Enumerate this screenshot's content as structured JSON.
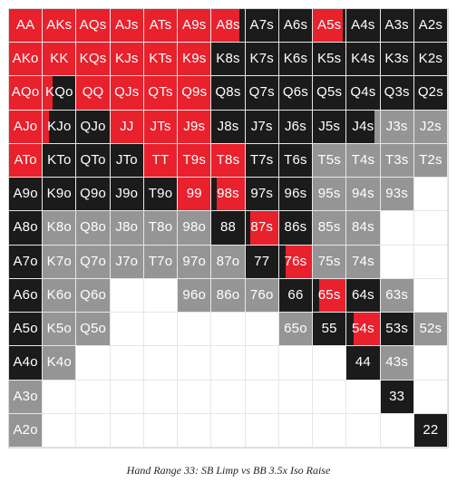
{
  "caption": "Hand Range 33: SB Limp vs BB 3.5x Iso Raise",
  "colors": {
    "raise": "#e8212d",
    "limp": "#1b1b1b",
    "call": "#959595",
    "fold": "#ffffff"
  },
  "grid": [
    [
      {
        "label": "AA",
        "color": "r"
      },
      {
        "label": "AKs",
        "color": "r"
      },
      {
        "label": "AQs",
        "color": "r"
      },
      {
        "label": "AJs",
        "color": "r"
      },
      {
        "label": "ATs",
        "color": "r"
      },
      {
        "label": "A9s",
        "color": "r"
      },
      {
        "label": "A8s",
        "color": "r",
        "mix": "k",
        "frac": 0.85
      },
      {
        "label": "A7s",
        "color": "k"
      },
      {
        "label": "A6s",
        "color": "k"
      },
      {
        "label": "A5s",
        "color": "r",
        "mix": "k",
        "frac": 0.9
      },
      {
        "label": "A4s",
        "color": "k"
      },
      {
        "label": "A3s",
        "color": "k"
      },
      {
        "label": "A2s",
        "color": "k"
      }
    ],
    [
      {
        "label": "AKo",
        "color": "r"
      },
      {
        "label": "KK",
        "color": "r"
      },
      {
        "label": "KQs",
        "color": "r"
      },
      {
        "label": "KJs",
        "color": "r"
      },
      {
        "label": "KTs",
        "color": "r"
      },
      {
        "label": "K9s",
        "color": "r"
      },
      {
        "label": "K8s",
        "color": "k"
      },
      {
        "label": "K7s",
        "color": "k"
      },
      {
        "label": "K6s",
        "color": "k"
      },
      {
        "label": "K5s",
        "color": "k"
      },
      {
        "label": "K4s",
        "color": "k"
      },
      {
        "label": "K3s",
        "color": "k"
      },
      {
        "label": "K2s",
        "color": "k"
      }
    ],
    [
      {
        "label": "AQo",
        "color": "r"
      },
      {
        "label": "KQo",
        "color": "r",
        "mix": "k",
        "frac": 0.3
      },
      {
        "label": "QQ",
        "color": "r"
      },
      {
        "label": "QJs",
        "color": "r"
      },
      {
        "label": "QTs",
        "color": "r"
      },
      {
        "label": "Q9s",
        "color": "r"
      },
      {
        "label": "Q8s",
        "color": "k"
      },
      {
        "label": "Q7s",
        "color": "k"
      },
      {
        "label": "Q6s",
        "color": "k"
      },
      {
        "label": "Q5s",
        "color": "k"
      },
      {
        "label": "Q4s",
        "color": "k"
      },
      {
        "label": "Q3s",
        "color": "k"
      },
      {
        "label": "Q2s",
        "color": "k"
      }
    ],
    [
      {
        "label": "AJo",
        "color": "r"
      },
      {
        "label": "KJo",
        "color": "r",
        "mix": "k",
        "frac": 0.2
      },
      {
        "label": "QJo",
        "color": "k"
      },
      {
        "label": "JJ",
        "color": "r"
      },
      {
        "label": "JTs",
        "color": "r"
      },
      {
        "label": "J9s",
        "color": "r"
      },
      {
        "label": "J8s",
        "color": "k"
      },
      {
        "label": "J7s",
        "color": "k"
      },
      {
        "label": "J6s",
        "color": "k"
      },
      {
        "label": "J5s",
        "color": "k"
      },
      {
        "label": "J4s",
        "color": "k",
        "mix": "g",
        "frac": 0.85
      },
      {
        "label": "J3s",
        "color": "g"
      },
      {
        "label": "J2s",
        "color": "g"
      }
    ],
    [
      {
        "label": "ATo",
        "color": "r"
      },
      {
        "label": "KTo",
        "color": "k"
      },
      {
        "label": "QTo",
        "color": "k"
      },
      {
        "label": "JTo",
        "color": "k"
      },
      {
        "label": "TT",
        "color": "r"
      },
      {
        "label": "T9s",
        "color": "r"
      },
      {
        "label": "T8s",
        "color": "r"
      },
      {
        "label": "T7s",
        "color": "k"
      },
      {
        "label": "T6s",
        "color": "k"
      },
      {
        "label": "T5s",
        "color": "g"
      },
      {
        "label": "T4s",
        "color": "g"
      },
      {
        "label": "T3s",
        "color": "g"
      },
      {
        "label": "T2s",
        "color": "g"
      }
    ],
    [
      {
        "label": "A9o",
        "color": "k"
      },
      {
        "label": "K9o",
        "color": "k"
      },
      {
        "label": "Q9o",
        "color": "k"
      },
      {
        "label": "J9o",
        "color": "k"
      },
      {
        "label": "T9o",
        "color": "k"
      },
      {
        "label": "99",
        "color": "r"
      },
      {
        "label": "98s",
        "color": "k",
        "mix": "r",
        "frac": 0.15
      },
      {
        "label": "97s",
        "color": "k"
      },
      {
        "label": "96s",
        "color": "k"
      },
      {
        "label": "95s",
        "color": "g"
      },
      {
        "label": "94s",
        "color": "g"
      },
      {
        "label": "93s",
        "color": "g"
      },
      {
        "label": "",
        "color": "w"
      }
    ],
    [
      {
        "label": "A8o",
        "color": "k"
      },
      {
        "label": "K8o",
        "color": "g"
      },
      {
        "label": "Q8o",
        "color": "g"
      },
      {
        "label": "J8o",
        "color": "g"
      },
      {
        "label": "T8o",
        "color": "g"
      },
      {
        "label": "98o",
        "color": "g"
      },
      {
        "label": "88",
        "color": "k"
      },
      {
        "label": "87s",
        "color": "k",
        "mix": "r",
        "frac": 0.15
      },
      {
        "label": "86s",
        "color": "k"
      },
      {
        "label": "85s",
        "color": "g"
      },
      {
        "label": "84s",
        "color": "g"
      },
      {
        "label": "",
        "color": "w"
      },
      {
        "label": "",
        "color": "w"
      }
    ],
    [
      {
        "label": "A7o",
        "color": "k"
      },
      {
        "label": "K7o",
        "color": "g"
      },
      {
        "label": "Q7o",
        "color": "g"
      },
      {
        "label": "J7o",
        "color": "g"
      },
      {
        "label": "T7o",
        "color": "g"
      },
      {
        "label": "97o",
        "color": "g"
      },
      {
        "label": "87o",
        "color": "g"
      },
      {
        "label": "77",
        "color": "k"
      },
      {
        "label": "76s",
        "color": "k",
        "mix": "r",
        "frac": 0.2
      },
      {
        "label": "75s",
        "color": "g"
      },
      {
        "label": "74s",
        "color": "g"
      },
      {
        "label": "",
        "color": "w"
      },
      {
        "label": "",
        "color": "w"
      }
    ],
    [
      {
        "label": "A6o",
        "color": "k"
      },
      {
        "label": "K6o",
        "color": "g"
      },
      {
        "label": "Q6o",
        "color": "g"
      },
      {
        "label": "",
        "color": "w"
      },
      {
        "label": "",
        "color": "w"
      },
      {
        "label": "96o",
        "color": "g"
      },
      {
        "label": "86o",
        "color": "g"
      },
      {
        "label": "76o",
        "color": "g"
      },
      {
        "label": "66",
        "color": "k"
      },
      {
        "label": "65s",
        "color": "k",
        "mix": "r",
        "frac": 0.2
      },
      {
        "label": "64s",
        "color": "k"
      },
      {
        "label": "63s",
        "color": "g"
      },
      {
        "label": "",
        "color": "w"
      }
    ],
    [
      {
        "label": "A5o",
        "color": "k"
      },
      {
        "label": "K5o",
        "color": "g"
      },
      {
        "label": "Q5o",
        "color": "g"
      },
      {
        "label": "",
        "color": "w"
      },
      {
        "label": "",
        "color": "w"
      },
      {
        "label": "",
        "color": "w"
      },
      {
        "label": "",
        "color": "w"
      },
      {
        "label": "",
        "color": "w"
      },
      {
        "label": "65o",
        "color": "g"
      },
      {
        "label": "55",
        "color": "k"
      },
      {
        "label": "54s",
        "color": "k",
        "mix": "r",
        "frac": 0.2
      },
      {
        "label": "53s",
        "color": "k"
      },
      {
        "label": "52s",
        "color": "g"
      }
    ],
    [
      {
        "label": "A4o",
        "color": "k"
      },
      {
        "label": "K4o",
        "color": "g"
      },
      {
        "label": "",
        "color": "w"
      },
      {
        "label": "",
        "color": "w"
      },
      {
        "label": "",
        "color": "w"
      },
      {
        "label": "",
        "color": "w"
      },
      {
        "label": "",
        "color": "w"
      },
      {
        "label": "",
        "color": "w"
      },
      {
        "label": "",
        "color": "w"
      },
      {
        "label": "",
        "color": "w"
      },
      {
        "label": "44",
        "color": "k"
      },
      {
        "label": "43s",
        "color": "g"
      },
      {
        "label": "",
        "color": "w"
      }
    ],
    [
      {
        "label": "A3o",
        "color": "g"
      },
      {
        "label": "",
        "color": "w"
      },
      {
        "label": "",
        "color": "w"
      },
      {
        "label": "",
        "color": "w"
      },
      {
        "label": "",
        "color": "w"
      },
      {
        "label": "",
        "color": "w"
      },
      {
        "label": "",
        "color": "w"
      },
      {
        "label": "",
        "color": "w"
      },
      {
        "label": "",
        "color": "w"
      },
      {
        "label": "",
        "color": "w"
      },
      {
        "label": "",
        "color": "w"
      },
      {
        "label": "33",
        "color": "k"
      },
      {
        "label": "",
        "color": "w"
      }
    ],
    [
      {
        "label": "A2o",
        "color": "g"
      },
      {
        "label": "",
        "color": "w"
      },
      {
        "label": "",
        "color": "w"
      },
      {
        "label": "",
        "color": "w"
      },
      {
        "label": "",
        "color": "w"
      },
      {
        "label": "",
        "color": "w"
      },
      {
        "label": "",
        "color": "w"
      },
      {
        "label": "",
        "color": "w"
      },
      {
        "label": "",
        "color": "w"
      },
      {
        "label": "",
        "color": "w"
      },
      {
        "label": "",
        "color": "w"
      },
      {
        "label": "",
        "color": "w"
      },
      {
        "label": "22",
        "color": "k"
      }
    ]
  ]
}
